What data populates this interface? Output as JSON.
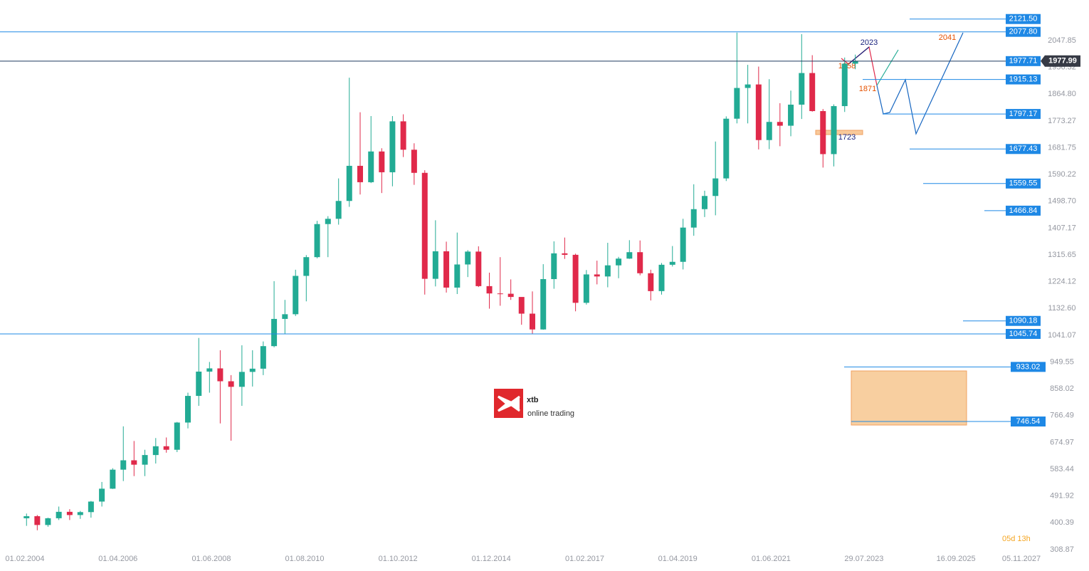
{
  "chart_data": {
    "type": "candlestick",
    "xlim": [
      "05.07.2003",
      "22.09.2027"
    ],
    "ylim": [
      265,
      2186.5
    ],
    "xticks": [
      "01.02.2004",
      "01.04.2006",
      "01.06.2008",
      "01.08.2010",
      "01.10.2012",
      "01.12.2014",
      "01.02.2017",
      "01.04.2019",
      "01.06.2021",
      "29.07.2023",
      "16.09.2025",
      "05.11.2027"
    ],
    "yticks": [
      {
        "value": 2047.85,
        "label": "2047.85"
      },
      {
        "value": 1956.32,
        "label": "1956.32"
      },
      {
        "value": 1864.8,
        "label": "1864.80"
      },
      {
        "value": 1773.27,
        "label": "1773.27"
      },
      {
        "value": 1681.75,
        "label": "1681.75"
      },
      {
        "value": 1590.22,
        "label": "1590.22"
      },
      {
        "value": 1498.7,
        "label": "1498.70"
      },
      {
        "value": 1407.17,
        "label": "1407.17"
      },
      {
        "value": 1315.65,
        "label": "1315.65"
      },
      {
        "value": 1224.12,
        "label": "1224.12"
      },
      {
        "value": 1132.6,
        "label": "1132.60"
      },
      {
        "value": 1041.07,
        "label": "1041.07"
      },
      {
        "value": 949.55,
        "label": "949.55"
      },
      {
        "value": 858.02,
        "label": "858.02"
      },
      {
        "value": 766.49,
        "label": "766.49"
      },
      {
        "value": 674.97,
        "label": "674.97"
      },
      {
        "value": 583.44,
        "label": "583.44"
      },
      {
        "value": 491.92,
        "label": "491.92"
      },
      {
        "value": 400.39,
        "label": "400.39"
      },
      {
        "value": 308.87,
        "label": "308.87"
      }
    ],
    "up_color": "#22ab94",
    "down_color": "#e0294a",
    "candles": {
      "x": [
        "01.01.2004",
        "01.04.2004",
        "01.07.2004",
        "01.10.2004",
        "01.01.2005",
        "01.04.2005",
        "01.07.2005",
        "01.10.2005",
        "01.01.2006",
        "01.04.2006",
        "01.07.2006",
        "01.10.2006",
        "01.01.2007",
        "01.04.2007",
        "01.07.2007",
        "01.10.2007",
        "01.01.2008",
        "01.04.2008",
        "01.07.2008",
        "01.10.2008",
        "01.01.2009",
        "01.04.2009",
        "01.07.2009",
        "01.10.2009",
        "01.01.2010",
        "01.04.2010",
        "01.07.2010",
        "01.10.2010",
        "01.01.2011",
        "01.04.2011",
        "01.07.2011",
        "01.10.2011",
        "01.01.2012",
        "01.04.2012",
        "01.07.2012",
        "01.10.2012",
        "01.01.2013",
        "01.04.2013",
        "01.07.2013",
        "01.10.2013",
        "01.01.2014",
        "01.04.2014",
        "01.07.2014",
        "01.10.2014",
        "01.01.2015",
        "01.04.2015",
        "01.07.2015",
        "01.10.2015",
        "01.01.2016",
        "01.04.2016",
        "01.07.2016",
        "01.10.2016",
        "01.01.2017",
        "01.04.2017",
        "01.07.2017",
        "01.10.2017",
        "01.01.2018",
        "01.04.2018",
        "01.07.2018",
        "01.10.2018",
        "01.01.2019",
        "01.04.2019",
        "01.07.2019",
        "01.10.2019",
        "01.01.2020",
        "01.04.2020",
        "01.07.2020",
        "01.10.2020",
        "01.01.2021",
        "01.04.2021",
        "01.07.2021",
        "01.10.2021",
        "01.01.2022",
        "01.04.2022",
        "01.07.2022",
        "01.10.2022",
        "01.01.2023",
        "01.04.2023"
      ],
      "open": [
        416,
        423,
        393,
        416,
        438,
        427,
        437,
        473,
        517,
        582,
        614,
        599,
        632,
        662,
        650,
        743,
        834,
        917,
        928,
        884,
        865,
        916,
        927,
        1004,
        1097,
        1113,
        1244,
        1308,
        1421,
        1439,
        1500,
        1620,
        1564,
        1669,
        1598,
        1772,
        1675,
        1596,
        1234,
        1328,
        1204,
        1283,
        1327,
        1209,
        1184,
        1183,
        1172,
        1115,
        1061,
        1233,
        1321,
        1316,
        1152,
        1249,
        1242,
        1280,
        1303,
        1325,
        1253,
        1192,
        1282,
        1292,
        1409,
        1472,
        1517,
        1577,
        1781,
        1886,
        1898,
        1708,
        1770,
        1757,
        1829,
        1937,
        1807,
        1660,
        1824,
        1969
      ],
      "high": [
        432,
        427,
        418,
        456,
        447,
        441,
        475,
        540,
        587,
        730,
        680,
        650,
        690,
        692,
        745,
        845,
        1032,
        950,
        990,
        905,
        1007,
        990,
        1020,
        1226,
        1162,
        1265,
        1315,
        1432,
        1448,
        1577,
        1921,
        1803,
        1790,
        1680,
        1790,
        1796,
        1697,
        1605,
        1434,
        1361,
        1392,
        1332,
        1345,
        1255,
        1308,
        1232,
        1170,
        1191,
        1284,
        1362,
        1375,
        1320,
        1264,
        1296,
        1357,
        1309,
        1366,
        1365,
        1265,
        1288,
        1346,
        1439,
        1557,
        1535,
        1703,
        1789,
        2075,
        1965,
        1959,
        1916,
        1834,
        1877,
        2070,
        1998,
        1814,
        1830,
        1990,
        2000
      ],
      "low": [
        390,
        375,
        387,
        410,
        410,
        414,
        418,
        456,
        516,
        543,
        560,
        560,
        603,
        640,
        642,
        723,
        800,
        845,
        740,
        681,
        800,
        866,
        905,
        1000,
        1045,
        1107,
        1157,
        1304,
        1308,
        1419,
        1480,
        1522,
        1561,
        1527,
        1550,
        1650,
        1555,
        1180,
        1208,
        1187,
        1182,
        1240,
        1206,
        1132,
        1142,
        1162,
        1077,
        1046,
        1060,
        1200,
        1302,
        1123,
        1146,
        1215,
        1205,
        1236,
        1302,
        1246,
        1160,
        1180,
        1276,
        1266,
        1381,
        1445,
        1451,
        1568,
        1765,
        1765,
        1676,
        1677,
        1687,
        1721,
        1780,
        1805,
        1614,
        1618,
        1804,
        1950
      ],
      "close": [
        423,
        393,
        416,
        438,
        427,
        437,
        473,
        517,
        582,
        614,
        599,
        632,
        662,
        650,
        743,
        834,
        917,
        928,
        884,
        865,
        916,
        927,
        1004,
        1097,
        1113,
        1244,
        1308,
        1421,
        1439,
        1500,
        1620,
        1564,
        1669,
        1598,
        1772,
        1675,
        1596,
        1234,
        1328,
        1204,
        1283,
        1327,
        1209,
        1184,
        1183,
        1172,
        1115,
        1061,
        1233,
        1321,
        1316,
        1152,
        1249,
        1242,
        1280,
        1303,
        1325,
        1253,
        1192,
        1282,
        1292,
        1409,
        1472,
        1517,
        1577,
        1781,
        1886,
        1898,
        1708,
        1770,
        1757,
        1829,
        1937,
        1807,
        1660,
        1824,
        1969,
        1978
      ]
    },
    "levels": [
      {
        "value": 2121.5,
        "label": "2121.50"
      },
      {
        "value": 2077.8,
        "label": "2077.80"
      },
      {
        "value": 1977.71,
        "label": "1977.71"
      },
      {
        "value": 1915.13,
        "label": "1915.13"
      },
      {
        "value": 1797.17,
        "label": "1797.17"
      },
      {
        "value": 1677.43,
        "label": "1677.43"
      },
      {
        "value": 1559.55,
        "label": "1559.55"
      },
      {
        "value": 1466.84,
        "label": "1466.84"
      },
      {
        "value": 1090.18,
        "label": "1090.18"
      },
      {
        "value": 1045.74,
        "label": "1045.74"
      },
      {
        "value": 933.02,
        "label": "933.02"
      },
      {
        "value": 746.54,
        "label": "746.54"
      }
    ],
    "last_price": 1977.99,
    "annotations": [
      "2023",
      "2041",
      "1958",
      "1871",
      "1723"
    ],
    "logo": {
      "name": "xtb",
      "tagline": "online trading"
    },
    "countdown": {
      "days": "05d",
      "hours": "13h"
    }
  }
}
